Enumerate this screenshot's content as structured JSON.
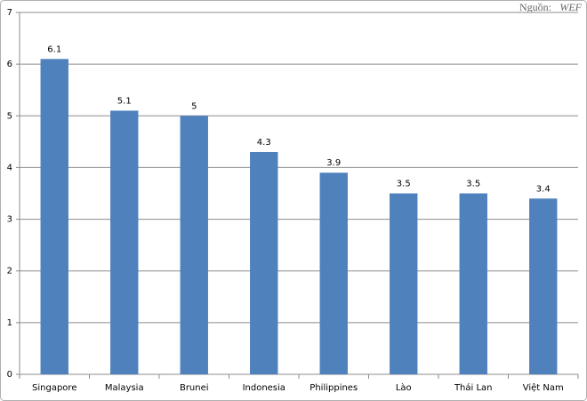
{
  "chart_data": {
    "type": "bar",
    "source": {
      "label": "Nguồn:",
      "name": "WEF"
    },
    "categories": [
      "Singapore",
      "Malaysia",
      "Brunei",
      "Indonesia",
      "Philippines",
      "Lào",
      "Thái Lan",
      "Việt Nam"
    ],
    "values": [
      6.1,
      5.1,
      5,
      4.3,
      3.9,
      3.5,
      3.5,
      3.4
    ],
    "color": "#4f81bd",
    "ylim": [
      0,
      7
    ],
    "yticks": [
      0,
      1,
      2,
      3,
      4,
      5,
      6,
      7
    ],
    "grid": true
  }
}
